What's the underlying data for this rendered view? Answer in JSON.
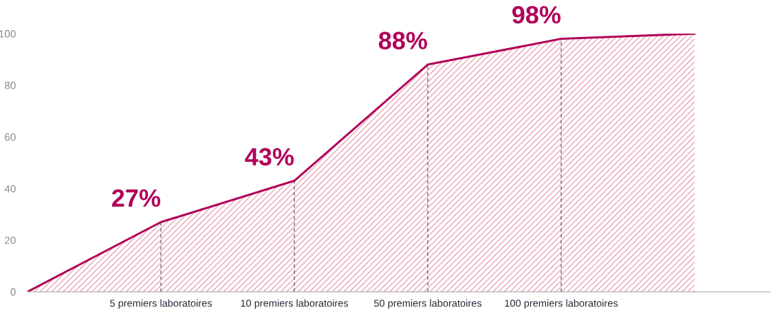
{
  "chart_data": {
    "type": "area",
    "categories": [
      null,
      "5 premiers laboratoires",
      "10 premiers laboratoires",
      "50 premiers laboratoires",
      "100 premiers laboratoires",
      null
    ],
    "series": [
      {
        "color": "#b0005a",
        "values": [
          0,
          27,
          43,
          88,
          98,
          100
        ],
        "value_labels": [
          null,
          "27%",
          "43%",
          "88%",
          "98%",
          null
        ]
      }
    ],
    "ylim": [
      0,
      100
    ],
    "yticks": [
      0,
      20,
      40,
      60,
      80,
      100
    ],
    "grid": false,
    "legend": false,
    "ref_lines": [
      {
        "axis": "x",
        "value": "5 premiers laboratoires",
        "color": "#505a6e",
        "line_style": "dashed"
      },
      {
        "axis": "x",
        "value": "10 premiers laboratoires",
        "color": "#505a6e",
        "line_style": "dashed"
      },
      {
        "axis": "x",
        "value": "50 premiers laboratoires",
        "color": "#505a6e",
        "line_style": "dashed"
      },
      {
        "axis": "x",
        "value": "100 premiers laboratoires",
        "color": "#505a6e",
        "line_style": "dashed"
      }
    ]
  }
}
